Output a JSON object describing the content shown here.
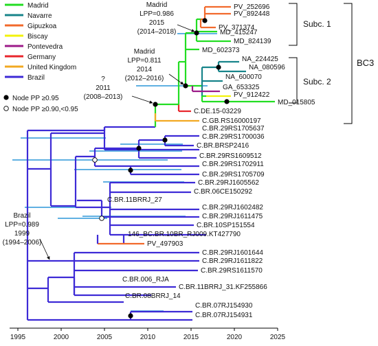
{
  "legend": {
    "items": [
      {
        "label": "Madrid",
        "color": "#22dd22"
      },
      {
        "label": "Navarre",
        "color": "#17848a"
      },
      {
        "label": "Gipuzkoa",
        "color": "#f2692b"
      },
      {
        "label": "Biscay",
        "color": "#f2f20a"
      },
      {
        "label": "Pontevedra",
        "color": "#9c1a88"
      },
      {
        "label": "Germany",
        "color": "#e8262c"
      },
      {
        "label": "United Kingdom",
        "color": "#f2a922"
      },
      {
        "label": "Brazil",
        "color": "#3d2ad6"
      }
    ],
    "node_high": "Node PP ≥0.95",
    "node_low": "Node PP ≥0.90,<0.95"
  },
  "tips": [
    "PV_252696",
    "PV_892448",
    "PV_371374",
    "MD_415247",
    "MD_824139",
    "MD_602373",
    "NA_224425",
    "NA_080596",
    "NA_600070",
    "GA_653325",
    "PV_912422",
    "MD_015805",
    "C.DE.15-03229",
    "C.GB.RS16000197",
    "C.BR.29RS1705637",
    "C.BR.29RS1700036",
    "C.BR.BRSP2416",
    "C.BR.29RS1609512",
    "C.BR.29RS1702911",
    "C.BR.29RS1705709",
    "C.BR.29RJ1605562",
    "C.BR.06CE150292",
    "C.BR.11BRRJ_27",
    "C.BR.29RJ1602482",
    "C.BR.29RJ1611475",
    "C.BR.10SP151554",
    "146_BC.BR.10BR_RJ009.KT427790",
    "PV_497903",
    "C.BR.29RJ1601644",
    "C.BR.29RJ1611822",
    "C.BR.29RS1611570",
    "C.BR.006_RJA",
    "C.BR.11BRRJ_31.KF255866",
    "C.BR.08BRRJ_14",
    "C.BR.07RJ154930",
    "C.BR.07RJ154931"
  ],
  "annotations": {
    "madrid_top": [
      "Madrid",
      "LPP=0.986",
      "2015",
      "(2014–2018)"
    ],
    "madrid_mid": [
      "Madrid",
      "LPP=0.811",
      "2014",
      "(2012–2016)"
    ],
    "unknown": [
      "?",
      "2011",
      "(2008–2013)"
    ],
    "brazil": [
      "Brazil",
      "LPP=0.989",
      "1999",
      "(1994–2006)"
    ]
  },
  "brackets": {
    "subc1": "Subc. 1",
    "subc2": "Subc. 2",
    "bc3": "BC3"
  },
  "axis": {
    "ticks": [
      "1995",
      "2000",
      "2005",
      "2010",
      "2015",
      "2020",
      "2025"
    ]
  }
}
